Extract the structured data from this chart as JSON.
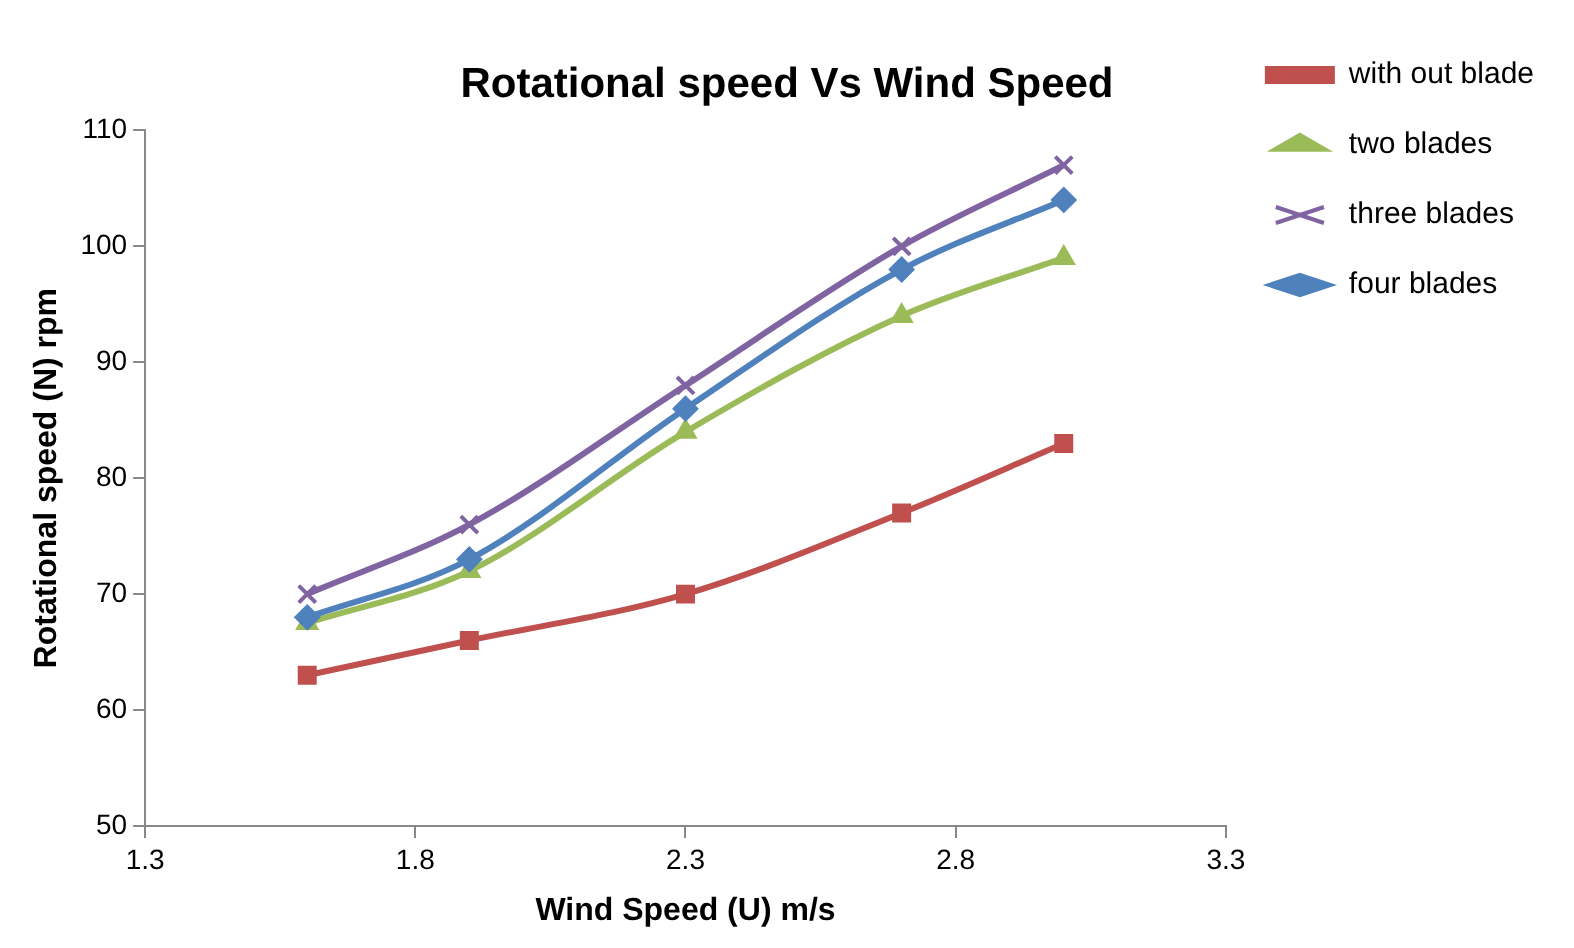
{
  "chart_data": {
    "type": "line",
    "title": "Rotational speed Vs Wind Speed",
    "xlabel": "Wind Speed (U) m/s",
    "ylabel": "Rotational speed (N) rpm",
    "x": [
      1.6,
      1.9,
      2.3,
      2.7,
      3.0
    ],
    "series": [
      {
        "name": "with out blade",
        "color": "#c0504d",
        "marker": "square",
        "values": [
          63,
          66,
          70,
          77,
          83
        ]
      },
      {
        "name": "two blades",
        "color": "#9bbb59",
        "marker": "triangle",
        "values": [
          67.5,
          72,
          84,
          94,
          99
        ]
      },
      {
        "name": "three blades",
        "color": "#8064a2",
        "marker": "cross",
        "values": [
          70,
          76,
          88,
          100,
          107
        ]
      },
      {
        "name": "four blades",
        "color": "#4f81bd",
        "marker": "diamond",
        "values": [
          68,
          73,
          86,
          98,
          104
        ]
      }
    ],
    "xlim": [
      1.3,
      3.3
    ],
    "xticks": [
      1.3,
      1.8,
      2.3,
      2.8,
      3.3
    ],
    "ylim": [
      50,
      110
    ],
    "yticks": [
      50,
      60,
      70,
      80,
      90,
      100,
      110
    ],
    "grid": false,
    "legend": "right",
    "line_style": "solid"
  }
}
